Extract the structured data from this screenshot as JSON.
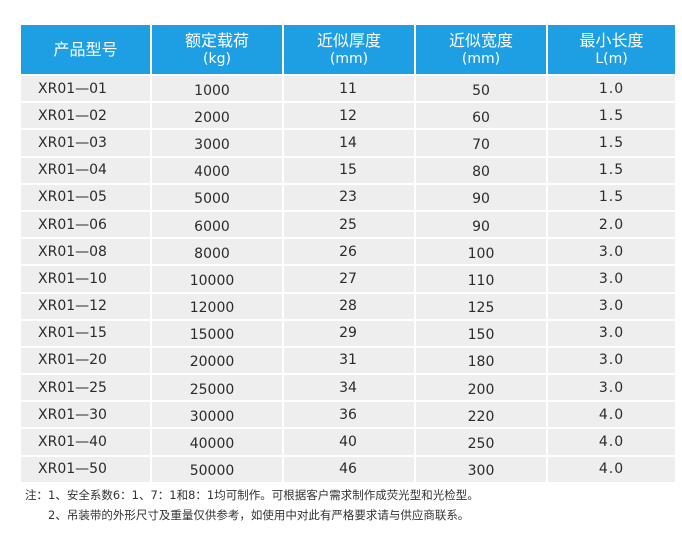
{
  "table": {
    "headers": [
      {
        "title": "产品型号",
        "unit": ""
      },
      {
        "title": "额定载荷",
        "unit": "(kg)"
      },
      {
        "title": "近似厚度",
        "unit": "(mm)"
      },
      {
        "title": "近似宽度",
        "unit": "(mm)"
      },
      {
        "title": "最小长度",
        "unit": "L(m)"
      }
    ],
    "rows": [
      [
        "XR01—01",
        "1000",
        "11",
        "50",
        "1.0"
      ],
      [
        "XR01—02",
        "2000",
        "12",
        "60",
        "1.5"
      ],
      [
        "XR01—03",
        "3000",
        "14",
        "70",
        "1.5"
      ],
      [
        "XR01—04",
        "4000",
        "15",
        "80",
        "1.5"
      ],
      [
        "XR01—05",
        "5000",
        "23",
        "90",
        "1.5"
      ],
      [
        "XR01—06",
        "6000",
        "25",
        "90",
        "2.0"
      ],
      [
        "XR01—08",
        "8000",
        "26",
        "100",
        "3.0"
      ],
      [
        "XR01—10",
        "10000",
        "27",
        "110",
        "3.0"
      ],
      [
        "XR01—12",
        "12000",
        "28",
        "125",
        "3.0"
      ],
      [
        "XR01—15",
        "15000",
        "29",
        "150",
        "3.0"
      ],
      [
        "XR01—20",
        "20000",
        "31",
        "180",
        "3.0"
      ],
      [
        "XR01—25",
        "25000",
        "34",
        "200",
        "3.0"
      ],
      [
        "XR01—30",
        "30000",
        "36",
        "220",
        "4.0"
      ],
      [
        "XR01—40",
        "40000",
        "40",
        "250",
        "4.0"
      ],
      [
        "XR01—50",
        "50000",
        "46",
        "300",
        "4.0"
      ]
    ],
    "colors": {
      "header_bg": "#1e9fe3",
      "header_text": "#ffffff",
      "cell_bg": "#eeeeee"
    }
  },
  "notes": [
    "注：1、安全系数6：1、7：1和8：1均可制作。可根据客户需求制作成荧光型和光检型。",
    "2、吊装带的外形尺寸及重量仅供参考，如使用中对此有严格要求请与供应商联系。"
  ]
}
